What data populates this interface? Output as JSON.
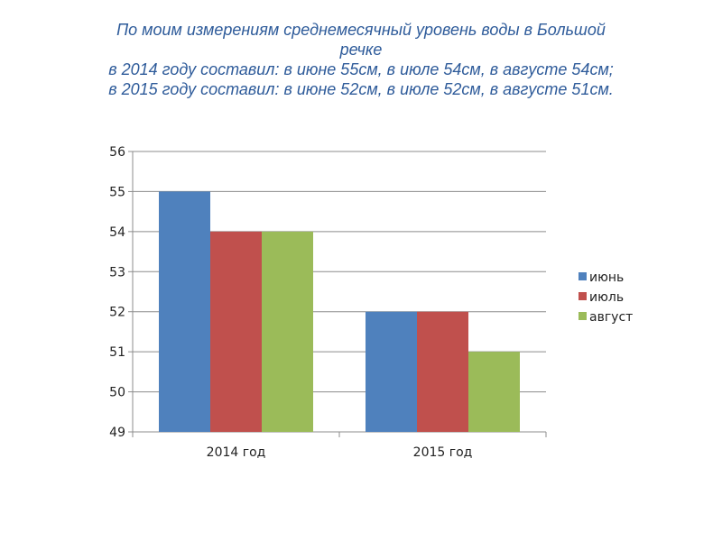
{
  "title_lines": [
    "По моим измерениям среднемесячный уровень воды в Большой",
    "речке",
    "в 2014 году составил: в июне 55см, в июле 54см, в августе 54см;",
    "в 2015 году составил: в июне 52см, в июле 52см, в августе 51см."
  ],
  "chart_data": {
    "type": "bar",
    "categories": [
      "2014 год",
      "2015 год"
    ],
    "series": [
      {
        "name": "июнь",
        "values": [
          55,
          52
        ],
        "color": "#4f81bd"
      },
      {
        "name": "июль",
        "values": [
          54,
          52
        ],
        "color": "#c0504d"
      },
      {
        "name": "август",
        "values": [
          54,
          51
        ],
        "color": "#9bbb59"
      }
    ],
    "ylim": [
      49,
      56
    ],
    "yticks": [
      49,
      50,
      51,
      52,
      53,
      54,
      55,
      56
    ],
    "grid": true,
    "legend": "right"
  }
}
